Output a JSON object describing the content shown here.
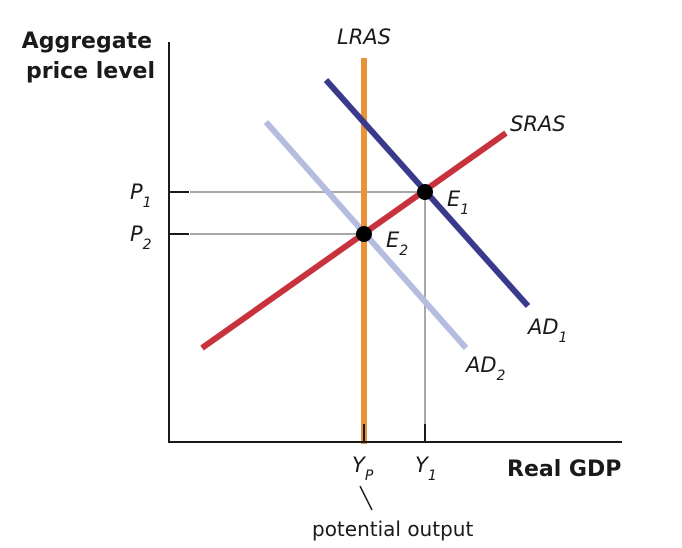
{
  "diagram": {
    "y_axis_title_line1": "Aggregate",
    "y_axis_title_line2": "price level",
    "x_axis_title": "Real GDP",
    "curves": {
      "lras": {
        "label": "LRAS",
        "color": "#e8923a"
      },
      "sras": {
        "label": "SRAS",
        "color": "#c8323c"
      },
      "ad1": {
        "label": "AD",
        "sub": "1",
        "color": "#3a3a8c"
      },
      "ad2": {
        "label": "AD",
        "sub": "2",
        "color": "#b4bce0"
      }
    },
    "points": {
      "e1": {
        "label": "E",
        "sub": "1"
      },
      "e2": {
        "label": "E",
        "sub": "2"
      }
    },
    "y_ticks": {
      "p1": {
        "label": "P",
        "sub": "1"
      },
      "p2": {
        "label": "P",
        "sub": "2"
      }
    },
    "x_ticks": {
      "yp": {
        "label": "Y",
        "sub": "P"
      },
      "y1": {
        "label": "Y",
        "sub": "1"
      }
    },
    "annotation": "potential output",
    "guide_color": "#a8a8a8"
  }
}
